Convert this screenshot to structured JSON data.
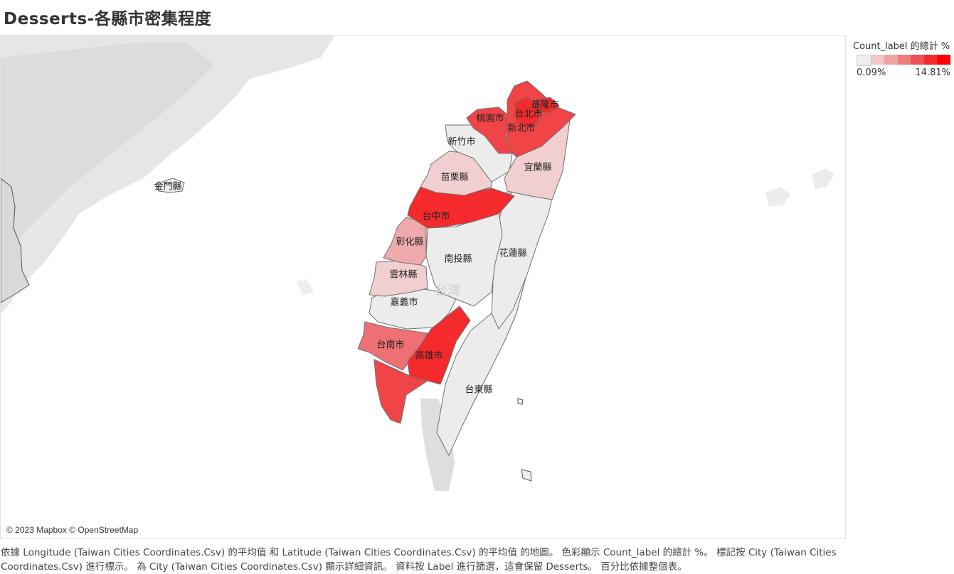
{
  "page": {
    "title": "Desserts-各縣市密集程度",
    "caption": "依據 Longitude (Taiwan Cities Coordinates.Csv) 的平均值 和 Latitude (Taiwan Cities Coordinates.Csv) 的平均值 的地圖。 色彩顯示 Count_label 的總計 %。 標記按 City (Taiwan Cities Coordinates.Csv) 進行標示。 為 City (Taiwan Cities Coordinates.Csv) 顯示詳細資訊。 資料按 Label 進行篩選，這會保留 Desserts。 百分比依據整個表。"
  },
  "map": {
    "attribution": "© 2023 Mapbox © OpenStreetMap",
    "basemap_label": "台灣",
    "regions": [
      {
        "id": "keelung",
        "name": "基隆市",
        "share_level": "highest"
      },
      {
        "id": "taipei",
        "name": "台北市",
        "share_level": "highest"
      },
      {
        "id": "new-taipei",
        "name": "新北市",
        "share_level": "very-high"
      },
      {
        "id": "taoyuan",
        "name": "桃園市",
        "share_level": "very-high"
      },
      {
        "id": "hsinchu",
        "name": "新竹市",
        "share_level": "lowest"
      },
      {
        "id": "yilan",
        "name": "宜蘭縣",
        "share_level": "low"
      },
      {
        "id": "miaoli",
        "name": "苗栗縣",
        "share_level": "low"
      },
      {
        "id": "taichung",
        "name": "台中市",
        "share_level": "highest"
      },
      {
        "id": "changhua",
        "name": "彰化縣",
        "share_level": "low-mid"
      },
      {
        "id": "nantou",
        "name": "南投縣",
        "share_level": "lowest"
      },
      {
        "id": "hualien",
        "name": "花蓮縣",
        "share_level": "lowest"
      },
      {
        "id": "yunlin",
        "name": "雲林縣",
        "share_level": "low"
      },
      {
        "id": "chiayi",
        "name": "嘉義市",
        "share_level": "lowest"
      },
      {
        "id": "tainan",
        "name": "台南市",
        "share_level": "mid-high"
      },
      {
        "id": "kaohsiung",
        "name": "高雄市",
        "share_level": "highest"
      },
      {
        "id": "pingtung",
        "name": "",
        "share_level": "very-high"
      },
      {
        "id": "taitung",
        "name": "台東縣",
        "share_level": "lowest"
      },
      {
        "id": "kinmen",
        "name": "金門縣",
        "share_level": "lowest"
      }
    ]
  },
  "legend": {
    "title": "Count_label 的總計 %",
    "min_label": "0.09%",
    "max_label": "14.81%",
    "swatches": [
      "#eeeeee",
      "#f3c6c8",
      "#efa2a4",
      "#ed7c7e",
      "#ee5254",
      "#f22c2e",
      "#ff0000"
    ]
  },
  "colors": {
    "lowest": "#ececec",
    "low": "#f1cfd0",
    "low-mid": "#eeaaac",
    "mid-high": "#ee7072",
    "very-high": "#f04446",
    "highest": "#f52a2c",
    "land": "#e2e2e2",
    "water": "#ffffff"
  }
}
